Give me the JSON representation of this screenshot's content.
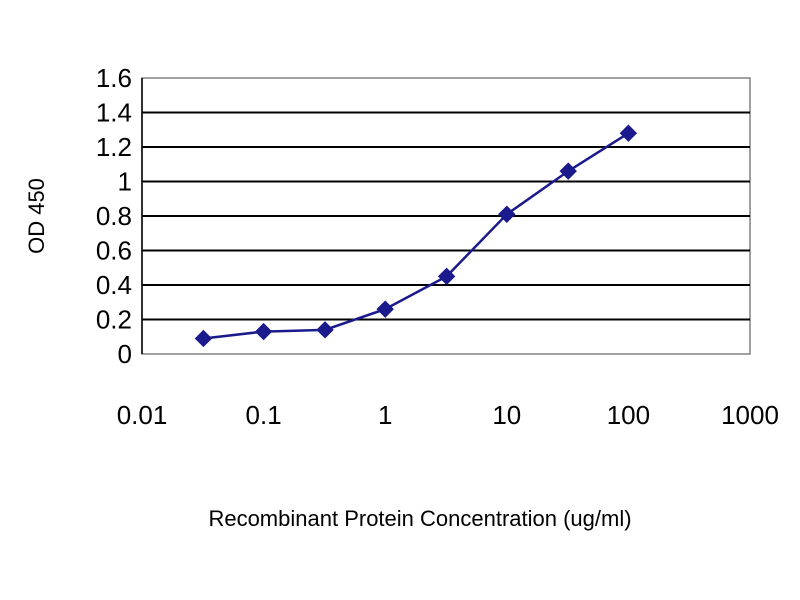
{
  "chart_data": {
    "type": "line",
    "title": "",
    "xlabel": "Recombinant Protein Concentration (ug/ml)",
    "ylabel": "OD 450",
    "x_scale": "log",
    "xlim": [
      0.01,
      1000
    ],
    "ylim": [
      0,
      1.6
    ],
    "x_ticks": [
      "0.01",
      "0.1",
      "1",
      "10",
      "100",
      "1000"
    ],
    "y_ticks": [
      "0",
      "0.2",
      "0.4",
      "0.6",
      "0.8",
      "1",
      "1.2",
      "1.4",
      "1.6"
    ],
    "grid": "horizontal",
    "legend": "none",
    "plot_background": "#ffffff",
    "gridline_color": "#000000",
    "series": [
      {
        "color": "#1a1a8c",
        "marker": "diamond",
        "x": [
          0.032,
          0.1,
          0.32,
          1,
          3.2,
          10,
          32,
          100
        ],
        "y": [
          0.09,
          0.13,
          0.14,
          0.26,
          0.45,
          0.81,
          1.06,
          1.28
        ]
      }
    ]
  }
}
